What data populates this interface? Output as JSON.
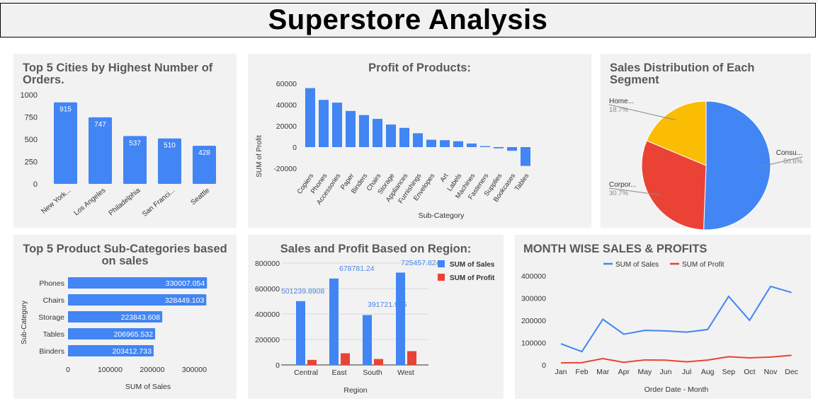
{
  "page_title": "Superstore Analysis",
  "colors": {
    "blue": "#4285f4",
    "red": "#ea4335",
    "yellow": "#fbbc04",
    "panel": "#f2f2f2",
    "title": "#595959"
  },
  "chart_data": [
    {
      "id": "cities",
      "type": "bar",
      "title": "Top 5 Cities by Highest Number of Orders.",
      "categories": [
        "New York...",
        "Los Angeles",
        "Philadelphia",
        "San Franci...",
        "Seattle"
      ],
      "values": [
        915,
        747,
        537,
        510,
        428
      ],
      "data_labels": [
        "915",
        "747",
        "537",
        "510",
        "428"
      ],
      "y_ticks": [
        "0",
        "250",
        "500",
        "750",
        "1000"
      ],
      "ylim": [
        0,
        1000
      ],
      "xlabel": "",
      "ylabel": ""
    },
    {
      "id": "products",
      "type": "bar",
      "title": "Profit of Products:",
      "categories": [
        "Copiers",
        "Phones",
        "Accessories",
        "Paper",
        "Binders",
        "Chairs",
        "Storage",
        "Appliances",
        "Furnishings",
        "Envelopes",
        "Art",
        "Labels",
        "Machines",
        "Fasteners",
        "Supplies",
        "Bookcases",
        "Tables"
      ],
      "values": [
        55618,
        44516,
        41937,
        34054,
        30222,
        26590,
        21279,
        18138,
        13059,
        6964,
        6528,
        5546,
        3385,
        950,
        -1189,
        -3473,
        -17725
      ],
      "y_ticks": [
        "-20000",
        "0",
        "20000",
        "40000",
        "60000"
      ],
      "ylim": [
        -20000,
        60000
      ],
      "xlabel": "Sub-Category",
      "ylabel": "SUM of Profit"
    },
    {
      "id": "segment",
      "type": "pie",
      "title": "Sales Distribution of Each Segment",
      "slices": [
        {
          "label": "Consu...",
          "pct_label": "50.6%",
          "value": 50.6,
          "color": "#4285f4"
        },
        {
          "label": "Corpor...",
          "pct_label": "30.7%",
          "value": 30.7,
          "color": "#ea4335"
        },
        {
          "label": "Home...",
          "pct_label": "18.7%",
          "value": 18.7,
          "color": "#fbbc04"
        }
      ]
    },
    {
      "id": "subcat_sales",
      "type": "bar",
      "orientation": "horizontal",
      "title": "Top 5 Product Sub-Categories based on sales",
      "categories": [
        "Phones",
        "Chairs",
        "Storage",
        "Tables",
        "Binders"
      ],
      "values": [
        330007.054,
        328449.103,
        223843.608,
        206965.532,
        203412.733
      ],
      "data_labels": [
        "330007.054",
        "328449.103",
        "223843.608",
        "206965.532",
        "203412.733"
      ],
      "x_ticks": [
        "0",
        "100000",
        "200000",
        "300000"
      ],
      "xlim": [
        0,
        375000
      ],
      "xlabel": "SUM of Sales",
      "ylabel": "Sub-Category"
    },
    {
      "id": "region",
      "type": "bar",
      "title": "Sales and Profit Based on Region:",
      "categories": [
        "Central",
        "East",
        "South",
        "West"
      ],
      "series": [
        {
          "name": "SUM of Sales",
          "values": [
            501239.8908,
            678781.24,
            391721.905,
            725457.8245
          ],
          "color": "#4285f4",
          "data_labels": [
            "501239.8908",
            "678781.24",
            "391721.905",
            "725457.8245"
          ]
        },
        {
          "name": "SUM of Profit",
          "values": [
            39706.36,
            91522.78,
            46749.43,
            108418.45
          ],
          "color": "#ea4335"
        }
      ],
      "y_ticks": [
        "0",
        "200000",
        "400000",
        "600000",
        "800000"
      ],
      "ylim": [
        0,
        800000
      ],
      "xlabel": "Region",
      "ylabel": "",
      "legend": "top-right"
    },
    {
      "id": "monthly",
      "type": "line",
      "title": "MONTH WISE SALES & PROFITS",
      "categories": [
        "Jan",
        "Feb",
        "Mar",
        "Apr",
        "May",
        "Jun",
        "Jul",
        "Aug",
        "Sep",
        "Oct",
        "Nov",
        "Dec"
      ],
      "series": [
        {
          "name": "SUM of Sales",
          "values": [
            94925,
            59751,
            205005,
            137762,
            155028,
            152718,
            147238,
            159044,
            307650,
            200323,
            352461,
            325293
          ],
          "color": "#4285f4"
        },
        {
          "name": "SUM of Profit",
          "values": [
            9134,
            10294,
            28594,
            11587,
            22411,
            21285,
            13832,
            21776,
            36857,
            31784,
            35468,
            43369
          ],
          "color": "#ea4335"
        }
      ],
      "y_ticks": [
        "0",
        "100000",
        "200000",
        "300000",
        "400000"
      ],
      "ylim": [
        0,
        400000
      ],
      "xlabel": "Order Date - Month",
      "ylabel": "",
      "legend": "top-center"
    }
  ]
}
